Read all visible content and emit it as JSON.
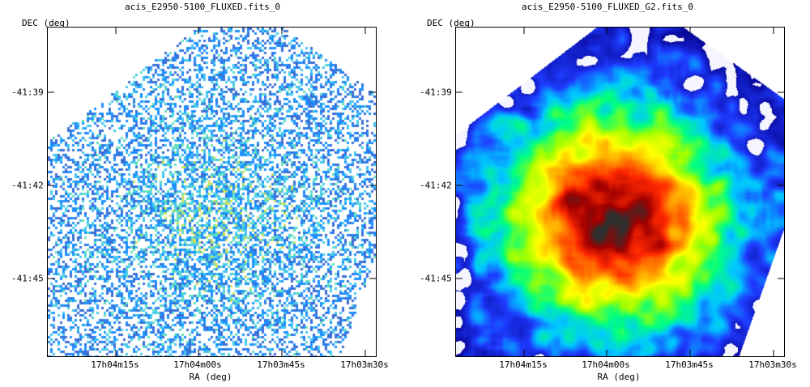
{
  "panels": {
    "left": {
      "title": "acis_E2950-5100_FLUXED.fits_0",
      "y_axis_label": "DEC (deg)",
      "x_axis_label": "RA (deg)",
      "y_ticks": [
        "-41:39",
        "-41:42",
        "-41:45"
      ],
      "x_ticks": [
        "17h04m15s",
        "17h04m00s",
        "17h03m45s",
        "17h03m30s"
      ],
      "colormap": [
        "#ffffff",
        "#3b6fd8",
        "#1e90ff",
        "#46c8f0",
        "#66e0c0",
        "#c8e060"
      ]
    },
    "right": {
      "title": "acis_E2950-5100_FLUXED_G2.fits_0",
      "y_axis_label": "DEC (deg)",
      "x_axis_label": "RA (deg)",
      "y_ticks": [
        "-41:39",
        "-41:42",
        "-41:45"
      ],
      "x_ticks": [
        "17h04m15s",
        "17h04m00s",
        "17h03m45s",
        "17h03m30s"
      ],
      "colormap": [
        "#ffffff",
        "#0a0aa0",
        "#1e3cff",
        "#00c8ff",
        "#00ff80",
        "#a0ff00",
        "#ffff00",
        "#ff9600",
        "#ff2800",
        "#a00000",
        "#303030"
      ]
    }
  }
}
